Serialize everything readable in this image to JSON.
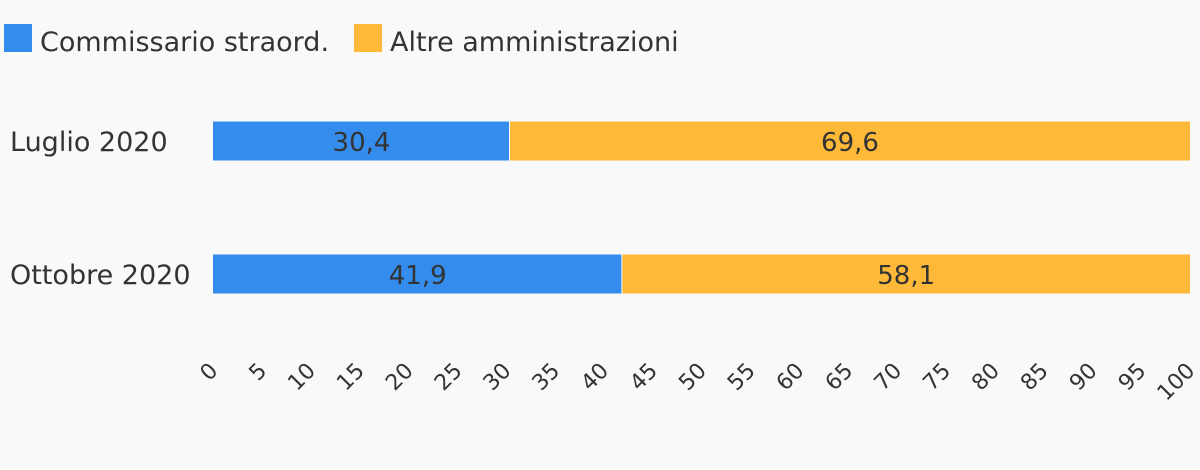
{
  "chart_data": {
    "type": "bar",
    "orientation": "horizontal",
    "stacked": true,
    "categories": [
      "Luglio 2020",
      "Ottobre 2020"
    ],
    "series": [
      {
        "name": "Commissario straord.",
        "values": [
          30.4,
          41.9
        ],
        "labels": [
          "30,4",
          "41,9"
        ],
        "color": "#348ded"
      },
      {
        "name": "Altre amministrazioni",
        "values": [
          69.6,
          58.1
        ],
        "labels": [
          "69,6",
          "58,1"
        ],
        "color": "#ffb938"
      }
    ],
    "xlim": [
      0,
      100
    ],
    "xticks": [
      "0",
      "5",
      "10",
      "15",
      "20",
      "25",
      "30",
      "35",
      "40",
      "45",
      "50",
      "55",
      "60",
      "65",
      "70",
      "75",
      "80",
      "85",
      "90",
      "95",
      "100"
    ],
    "legend_position": "top-left",
    "grid": false
  }
}
